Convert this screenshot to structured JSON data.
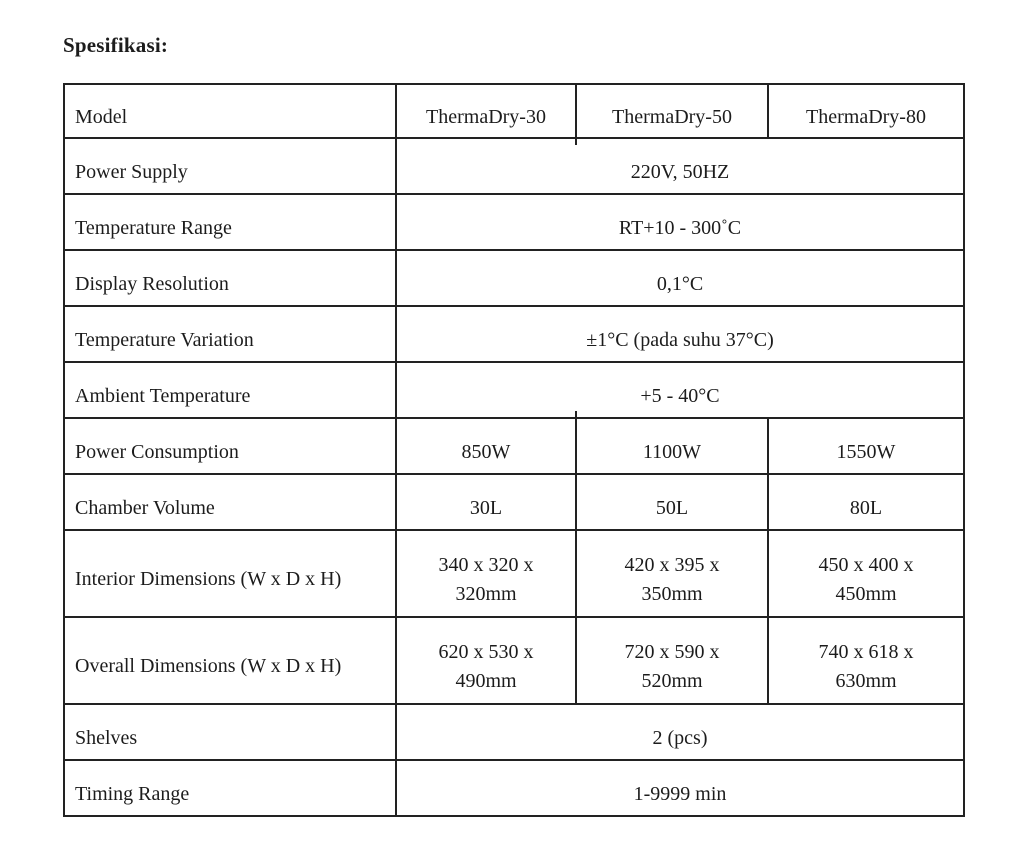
{
  "page": {
    "title": "Spesifikasi:"
  },
  "spec_table": {
    "header_row": {
      "label": "Model",
      "models": [
        "ThermaDry-30",
        "ThermaDry-50",
        "ThermaDry-80"
      ]
    },
    "rows": [
      {
        "label": "Power Supply",
        "value": "220V, 50HZ"
      },
      {
        "label": "Temperature Range",
        "value": "RT+10 - 300˚C"
      },
      {
        "label": "Display Resolution",
        "value": "0,1°C"
      },
      {
        "label": "Temperature Variation",
        "value": "±1°C (pada suhu 37°C)"
      },
      {
        "label": "Ambient Temperature",
        "value": "+5 - 40°C"
      },
      {
        "label": "Power Consumption",
        "values": [
          "850W",
          "1100W",
          "1550W"
        ]
      },
      {
        "label": "Chamber Volume",
        "values": [
          "30L",
          "50L",
          "80L"
        ]
      },
      {
        "label": "Interior Dimensions (W x D x H)",
        "values": [
          "340 x 320 x\n320mm",
          "420 x 395 x\n350mm",
          "450 x 400 x\n450mm"
        ]
      },
      {
        "label": "Overall Dimensions (W x D x H)",
        "values": [
          "620 x 530 x\n490mm",
          "720 x 590 x\n520mm",
          "740 x 618 x\n630mm"
        ]
      },
      {
        "label": "Shelves",
        "value": "2 (pcs)"
      },
      {
        "label": "Timing Range",
        "value": "1-9999 min"
      }
    ]
  }
}
